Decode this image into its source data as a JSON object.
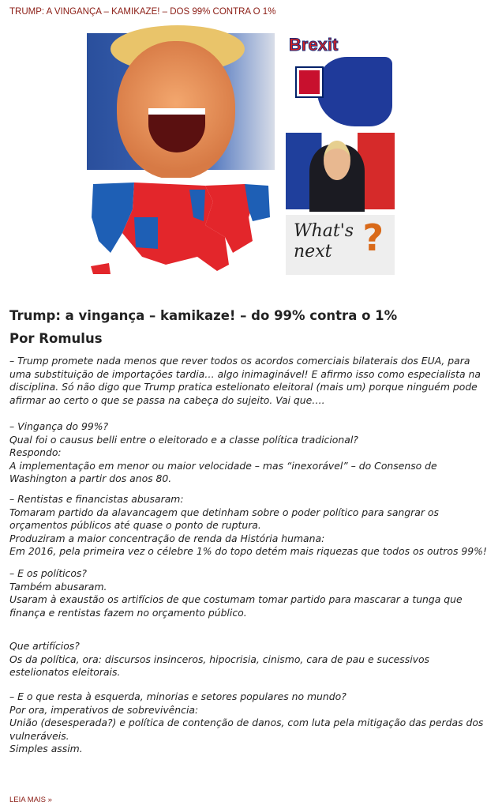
{
  "post_title": "TRUMP: A VINGANÇA – KAMIKAZE! – DOS 99% CONTRA O 1%",
  "images": {
    "brexit_text": "Brexit",
    "whats_next_text": "What's next",
    "question_mark": "?"
  },
  "heading": "Trump: a vingança – kamikaze! – do 99% contra o 1%",
  "author": "Por Romulus",
  "blocks": [
    [
      "– Trump promete nada menos que rever todos os acordos comerciais bilaterais dos EUA, para",
      "uma substituição de importações tardia… algo inimaginável! E afirmo isso como especialista na",
      "disciplina. Só não digo que Trump pratica estelionato eleitoral (mais um) porque ninguém pode",
      "afirmar ao certo o que se passa na cabeça do sujeito. Vai que…."
    ],
    [
      "– Vingança do 99%?",
      "Qual foi o causus belli entre o eleitorado e a classe política tradicional?",
      "Respondo:",
      "A implementação em menor ou maior velocidade – mas “inexorável” – do Consenso de",
      "Washington a partir dos anos 80."
    ],
    [
      "– Rentistas e financistas abusaram:",
      "Tomaram partido da alavancagem que detinham sobre o poder político para sangrar os",
      "orçamentos públicos até quase o ponto de ruptura.",
      "Produziram a maior concentração de renda da História humana:",
      "Em 2016, pela primeira vez o célebre 1% do topo detém mais riquezas que todos os outros 99%!"
    ],
    [
      "– E os políticos?",
      "Também abusaram.",
      "Usaram à exaustão os artifícios de que costumam tomar partido para mascarar a tunga que",
      "finança e rentistas fazem no orçamento público."
    ],
    [
      "Que artifícios?",
      "Os da política, ora: discursos insinceros, hipocrisia, cinismo, cara de pau e sucessivos",
      "estelionatos eleitorais."
    ],
    [
      "– E o que resta à esquerda, minorias e setores populares no mundo?",
      "Por ora, imperativos de sobrevivência:",
      "União (desesperada?) e política de contenção de danos, com luta pela mitigação das perdas dos",
      "vulneráveis.",
      "Simples assim."
    ]
  ],
  "read_more": "LEIA MAIS »",
  "colors": {
    "link": "#8b1c14",
    "text": "#222222",
    "red_state": "#e3262b",
    "blue_state": "#1e5fb5"
  }
}
